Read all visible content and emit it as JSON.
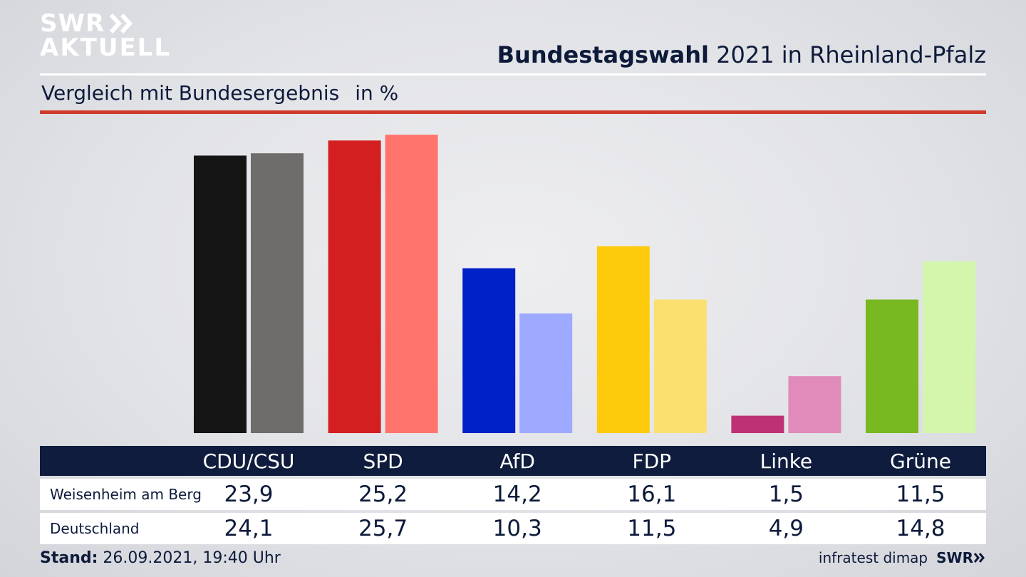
{
  "brand": {
    "line1": "SWR",
    "line2": "AKTUELL"
  },
  "headline": {
    "bold": "Bundestagswahl",
    "rest": " 2021 in Rheinland-Pfalz"
  },
  "subtitle": {
    "text": "Vergleich mit Bundesergebnis",
    "unit": "in %"
  },
  "footer": {
    "stand_label": "Stand:",
    "stand_value": " 26.09.2021, 19:40 Uhr"
  },
  "source": {
    "name": "infratest dimap",
    "brand": "SWR"
  },
  "chart_data": {
    "type": "bar",
    "title": "Bundestagswahl 2021 in Rheinland-Pfalz",
    "subtitle": "Vergleich mit Bundesergebnis",
    "unit": "in %",
    "categories": [
      "CDU/CSU",
      "SPD",
      "AfD",
      "FDP",
      "Linke",
      "Grüne"
    ],
    "series": [
      {
        "name": "Weisenheim am Berg",
        "values": [
          23.9,
          25.2,
          14.2,
          16.1,
          1.5,
          11.5
        ],
        "display": [
          "23,9",
          "25,2",
          "14,2",
          "16,1",
          "1,5",
          "11,5"
        ]
      },
      {
        "name": "Deutschland",
        "values": [
          24.1,
          25.7,
          10.3,
          11.5,
          4.9,
          14.8
        ],
        "display": [
          "24,1",
          "25,7",
          "10,3",
          "11,5",
          "4,9",
          "14,8"
        ]
      }
    ],
    "colors": {
      "primary": [
        "#141414",
        "#d41f20",
        "#0020c8",
        "#fecb0c",
        "#bf3175",
        "#78b820"
      ],
      "secondary": [
        "#6e6d6b",
        "#ff756d",
        "#9eaaff",
        "#fbe06f",
        "#e08bb9",
        "#d3f6ac"
      ]
    },
    "ylim": [
      0,
      26
    ]
  }
}
